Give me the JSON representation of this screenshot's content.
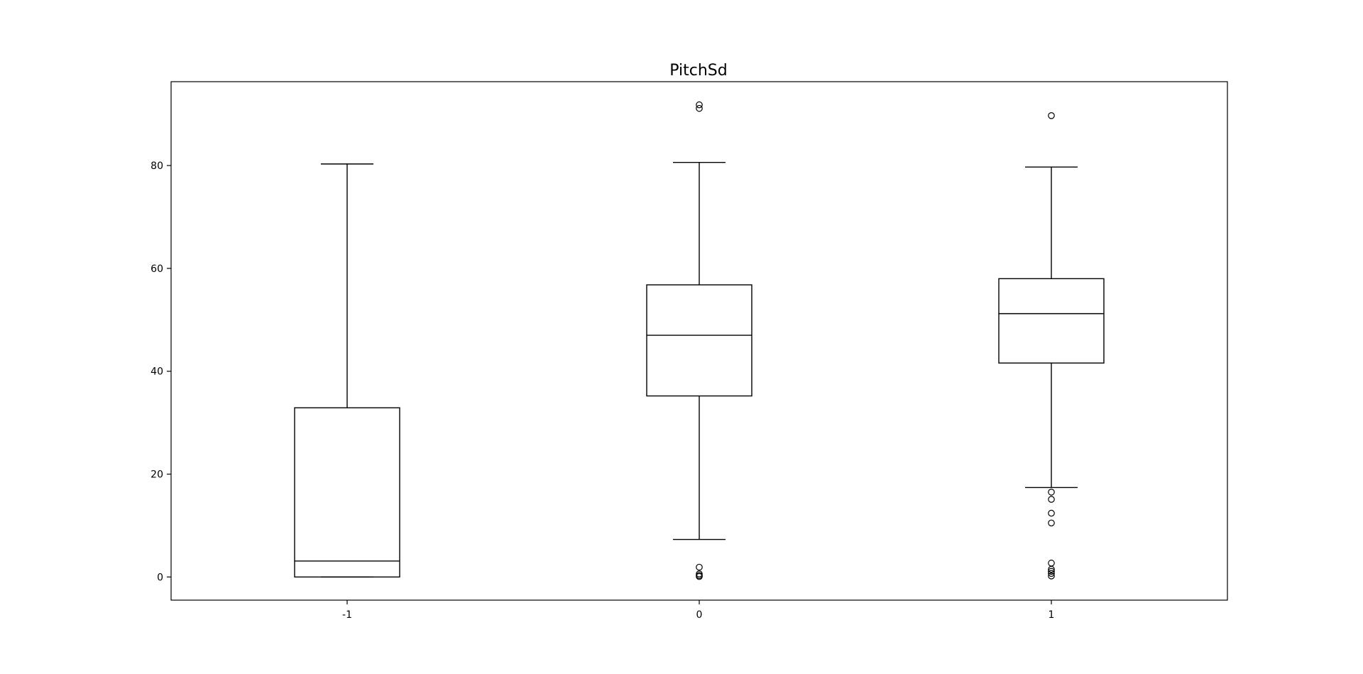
{
  "chart_data": {
    "type": "box",
    "title": "PitchSd",
    "xlabel": "",
    "ylabel": "",
    "categories": [
      "-1",
      "0",
      "1"
    ],
    "ylim": [
      -4.5,
      96.3
    ],
    "yticks": [
      0,
      20,
      40,
      60,
      80
    ],
    "grid": false,
    "boxes": [
      {
        "category": "-1",
        "whisker_low": 0.0,
        "q1": 0.0,
        "median": 3.1,
        "q3": 32.9,
        "whisker_high": 80.3,
        "outliers": []
      },
      {
        "category": "0",
        "whisker_low": 7.3,
        "q1": 35.2,
        "median": 47.0,
        "q3": 56.8,
        "whisker_high": 80.6,
        "outliers": [
          91.8,
          91.1,
          1.9,
          0.6,
          0.3,
          0.1
        ]
      },
      {
        "category": "1",
        "whisker_low": 17.4,
        "q1": 41.6,
        "median": 51.2,
        "q3": 58.0,
        "whisker_high": 79.7,
        "outliers": [
          89.7,
          16.5,
          15.1,
          12.4,
          10.5,
          2.7,
          1.5,
          1.1,
          0.7,
          0.2
        ]
      }
    ]
  }
}
